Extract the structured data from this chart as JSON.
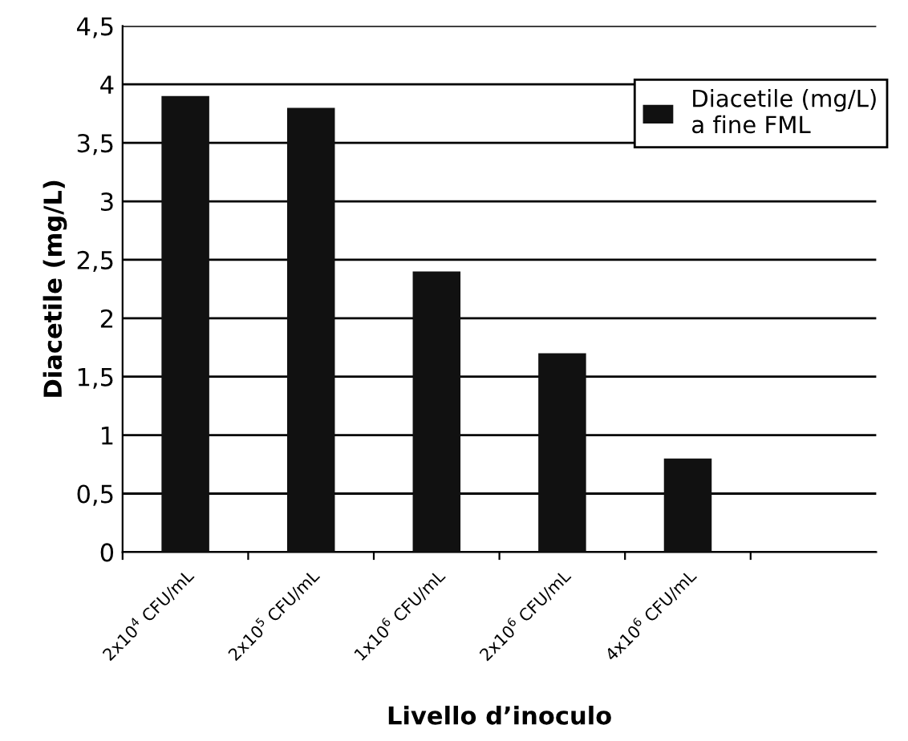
{
  "chart_data": {
    "type": "bar",
    "xlabel": "Livello d’inoculo",
    "ylabel": "Diacetile (mg/L)",
    "categories": [
      "2x10$^{4}$ CFU/mL",
      "2x10$^{5}$ CFU/mL",
      "1x10$^{6}$ CFU/mL",
      "2x10$^{6}$ CFU/mL",
      "4x10$^{6}$ CFU/mL",
      null
    ],
    "series": [
      {
        "name": "Diacetile (mg/L)\na fine FML",
        "color": "#111111",
        "values": [
          3.9,
          3.8,
          2.4,
          1.7,
          0.8,
          null
        ]
      }
    ],
    "ylim": [
      0,
      4.5
    ],
    "yticks": [
      0,
      {
        "value": 0.5,
        "label": "0,5"
      },
      1,
      {
        "value": 1.5,
        "label": "1,5"
      },
      2,
      {
        "value": 2.5,
        "label": "2,5"
      },
      3,
      {
        "value": 3.5,
        "label": "3,5"
      },
      4,
      {
        "value": 4.5,
        "label": "4,5"
      }
    ],
    "grid": "y",
    "legend": "top right"
  }
}
